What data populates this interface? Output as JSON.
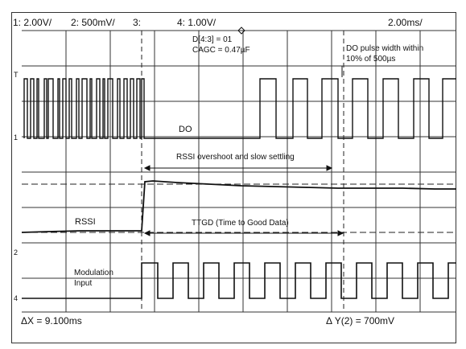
{
  "header": {
    "ch1": "1: 2.00V/",
    "ch2": "2: 500mV/",
    "ch3": "3:",
    "ch4": "4: 1.00V/",
    "timebase": "2.00ms/"
  },
  "annotations": {
    "d_setting": "D[4:3] = 01",
    "cagc": "CAGC = 0.47µF",
    "do_pulse_line1": "DO pulse width within",
    "do_pulse_line2": "10% of 500µs",
    "rssi_overshoot": "RSSI overshoot and slow settling",
    "ttgd": "TTGD (Time to Good Data)"
  },
  "traces": {
    "do_label": "DO",
    "rssi_label": "RSSI",
    "mod_label_line1": "Modulation",
    "mod_label_line2": "Input"
  },
  "channel_markers": {
    "m1": "1",
    "m2": "2",
    "m4": "4",
    "t": "T"
  },
  "footer": {
    "delta_x": "ΔX = 9.100ms",
    "delta_y": "Δ Y(2) = 700mV"
  },
  "colors": {
    "trace": "#111111",
    "grid": "#333333",
    "background": "#ffffff"
  }
}
